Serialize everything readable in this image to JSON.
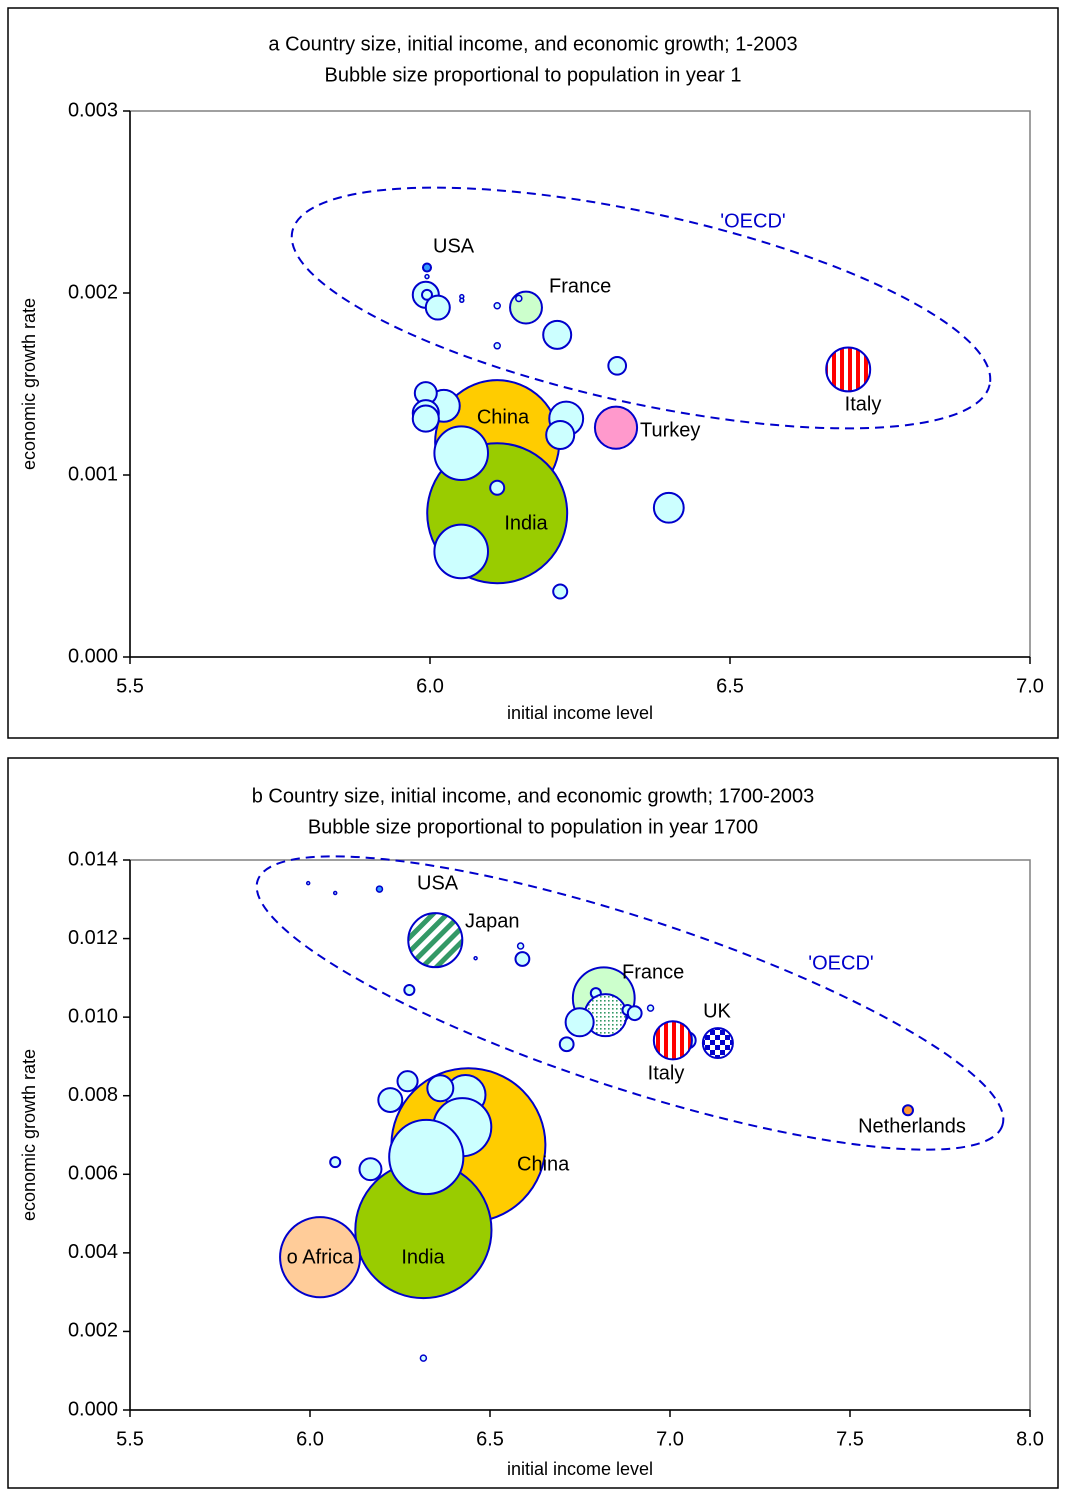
{
  "chart_data": [
    {
      "type": "bubble",
      "title": "a Country size, initial income, and economic growth; 1-2003",
      "subtitle": "Bubble size proportional to population in year 1",
      "x_label": "initial income level",
      "y_label": "economic growth rate",
      "xlim": [
        5.5,
        7.0
      ],
      "ylim": [
        0,
        0.003
      ],
      "xticks": [
        5.5,
        {
          "value": 6,
          "label": "6.0"
        },
        6.5,
        {
          "value": 7,
          "label": "7.0"
        }
      ],
      "yticks": [
        {
          "value": 0,
          "label": "0.000"
        },
        0.001,
        0.002,
        0.003
      ],
      "edge_color": "#0000cc",
      "annotation": {
        "text": "'OECD'",
        "color": "#0000cc"
      },
      "x": [
        6.112,
        6.112,
        6.052,
        6.052,
        6.227,
        6.217,
        6.31,
        6.697,
        6.16,
        6.212,
        5.993,
        5.995,
        6.013,
        6.023,
        5.993,
        5.993,
        5.993,
        6.312,
        6.398,
        6.112,
        6.217,
        5.995,
        5.995,
        6.053,
        6.053,
        6.112,
        6.148,
        6.112
      ],
      "values": [
        0.00118,
        0.00079,
        0.00112,
        0.00058,
        0.00131,
        0.00122,
        0.00126,
        0.00158,
        0.00192,
        0.00177,
        0.00199,
        0.00199,
        0.00192,
        0.00138,
        0.00145,
        0.00134,
        0.00131,
        0.0016,
        0.00082,
        0.00093,
        0.00036,
        0.00214,
        0.00209,
        0.00198,
        0.00196,
        0.00193,
        0.00197,
        0.00171
      ],
      "sizes": [
        59,
        75,
        11,
        11,
        4.4,
        3.0,
        6.8,
        7.4,
        3.9,
        3.0,
        2.6,
        0.38,
        2.2,
        3.9,
        1.85,
        2.6,
        2.6,
        1.2,
        3.4,
        0.75,
        0.75,
        0.25,
        0.06,
        0.06,
        0.06,
        0.14,
        0.14,
        0.14
      ],
      "fills": [
        "#ffcc00",
        "#99cc00",
        "#ccffff",
        "#ccffff",
        "#ccffff",
        "#ccffff",
        "#ff99cc",
        "stripes-red",
        "#ccffcc",
        "#ccffff",
        "#ccffff",
        "#ccffff",
        "#ccffff",
        "#ccffff",
        "#ccffff",
        "#ccffff",
        "#ccffff",
        "#ccffff",
        "#ccffff",
        "#ccffff",
        "#ccffff",
        "#3399ff",
        "#ccffff",
        "#ccffff",
        "#ccffff",
        "#ccffff",
        "#ccffff",
        "#ccffff"
      ],
      "labels": [
        "China",
        "India",
        null,
        null,
        null,
        null,
        "Turkey",
        "Italy",
        "France",
        null,
        null,
        null,
        null,
        null,
        null,
        null,
        null,
        null,
        null,
        null,
        null,
        "USA",
        null,
        null,
        null,
        null,
        null,
        null
      ]
    },
    {
      "type": "bubble",
      "title": "b Country size, initial income, and economic growth; 1700-2003",
      "subtitle": "Bubble size proportional to population in year 1700",
      "x_label": "initial income level",
      "y_label": "economic growth rate",
      "xlim": [
        5.5,
        8.0
      ],
      "ylim": [
        0,
        0.014
      ],
      "xticks": [
        5.5,
        {
          "value": 6,
          "label": "6.0"
        },
        6.5,
        {
          "value": 7,
          "label": "7.0"
        },
        7.5,
        {
          "value": 8,
          "label": "8.0"
        }
      ],
      "yticks": [
        {
          "value": 0,
          "label": "0.000"
        },
        0.002,
        0.004,
        0.006,
        0.008,
        {
          "value": 0.01,
          "label": "0.010"
        },
        0.012,
        0.014
      ],
      "edge_color": "#0000cc",
      "annotation": {
        "text": "'OECD'",
        "color": "#0000cc"
      },
      "x": [
        6.44,
        6.315,
        6.028,
        6.432,
        6.423,
        6.323,
        6.362,
        6.271,
        6.223,
        6.07,
        6.168,
        6.315,
        6.348,
        6.816,
        6.794,
        6.821,
        6.946,
        6.882,
        6.902,
        6.749,
        6.713,
        7.049,
        7.008,
        7.133,
        7.661,
        6.193,
        5.995,
        6.07,
        6.46,
        6.585,
        6.59,
        6.276
      ],
      "values": [
        0.00674,
        0.00458,
        0.00389,
        0.00802,
        0.0072,
        0.00644,
        0.00819,
        0.00837,
        0.00789,
        0.00631,
        0.00613,
        0.00132,
        0.01196,
        0.01048,
        0.01061,
        0.01005,
        0.01023,
        0.01018,
        0.0101,
        0.00987,
        0.00931,
        0.00941,
        0.00941,
        0.00934,
        0.00763,
        0.01326,
        0.01341,
        0.01316,
        0.0115,
        0.01181,
        0.01148,
        0.01069
      ],
      "sizes": [
        211,
        165,
        57,
        14.2,
        30,
        49,
        6,
        3.6,
        5.1,
        0.9,
        4.3,
        0.32,
        26,
        34,
        0.9,
        15.7,
        0.32,
        0.9,
        1.7,
        7,
        1.7,
        2.3,
        12.9,
        8,
        0.9,
        0.32,
        0.08,
        0.08,
        0.08,
        0.32,
        1.7,
        0.9
      ],
      "fills": [
        "#ffcc00",
        "#99cc00",
        "#ffcc99",
        "#ccffff",
        "#ccffff",
        "#ccffff",
        "#ccffff",
        "#ccffff",
        "#ccffff",
        "#ccffff",
        "#ccffff",
        "#ccffff",
        "stripes-green",
        "#ccffcc",
        "#ccffff",
        "dots-green",
        "#ccffff",
        "#ccffff",
        "#ccffff",
        "#ccffff",
        "#ccffff",
        "#ccffff",
        "stripes-red",
        "checker-blue",
        "#ff9933",
        "#3399ff",
        "#ccffff",
        "#ccffff",
        "#ccffff",
        "#ccffff",
        "#ccffff",
        "#ccffff"
      ],
      "labels": [
        "China",
        "India",
        "o Africa",
        null,
        null,
        null,
        null,
        null,
        null,
        null,
        null,
        null,
        "Japan",
        "France",
        null,
        null,
        null,
        null,
        null,
        null,
        null,
        null,
        "Italy",
        "UK",
        "Netherlands",
        "USA",
        null,
        null,
        null,
        null,
        null,
        null
      ]
    }
  ]
}
